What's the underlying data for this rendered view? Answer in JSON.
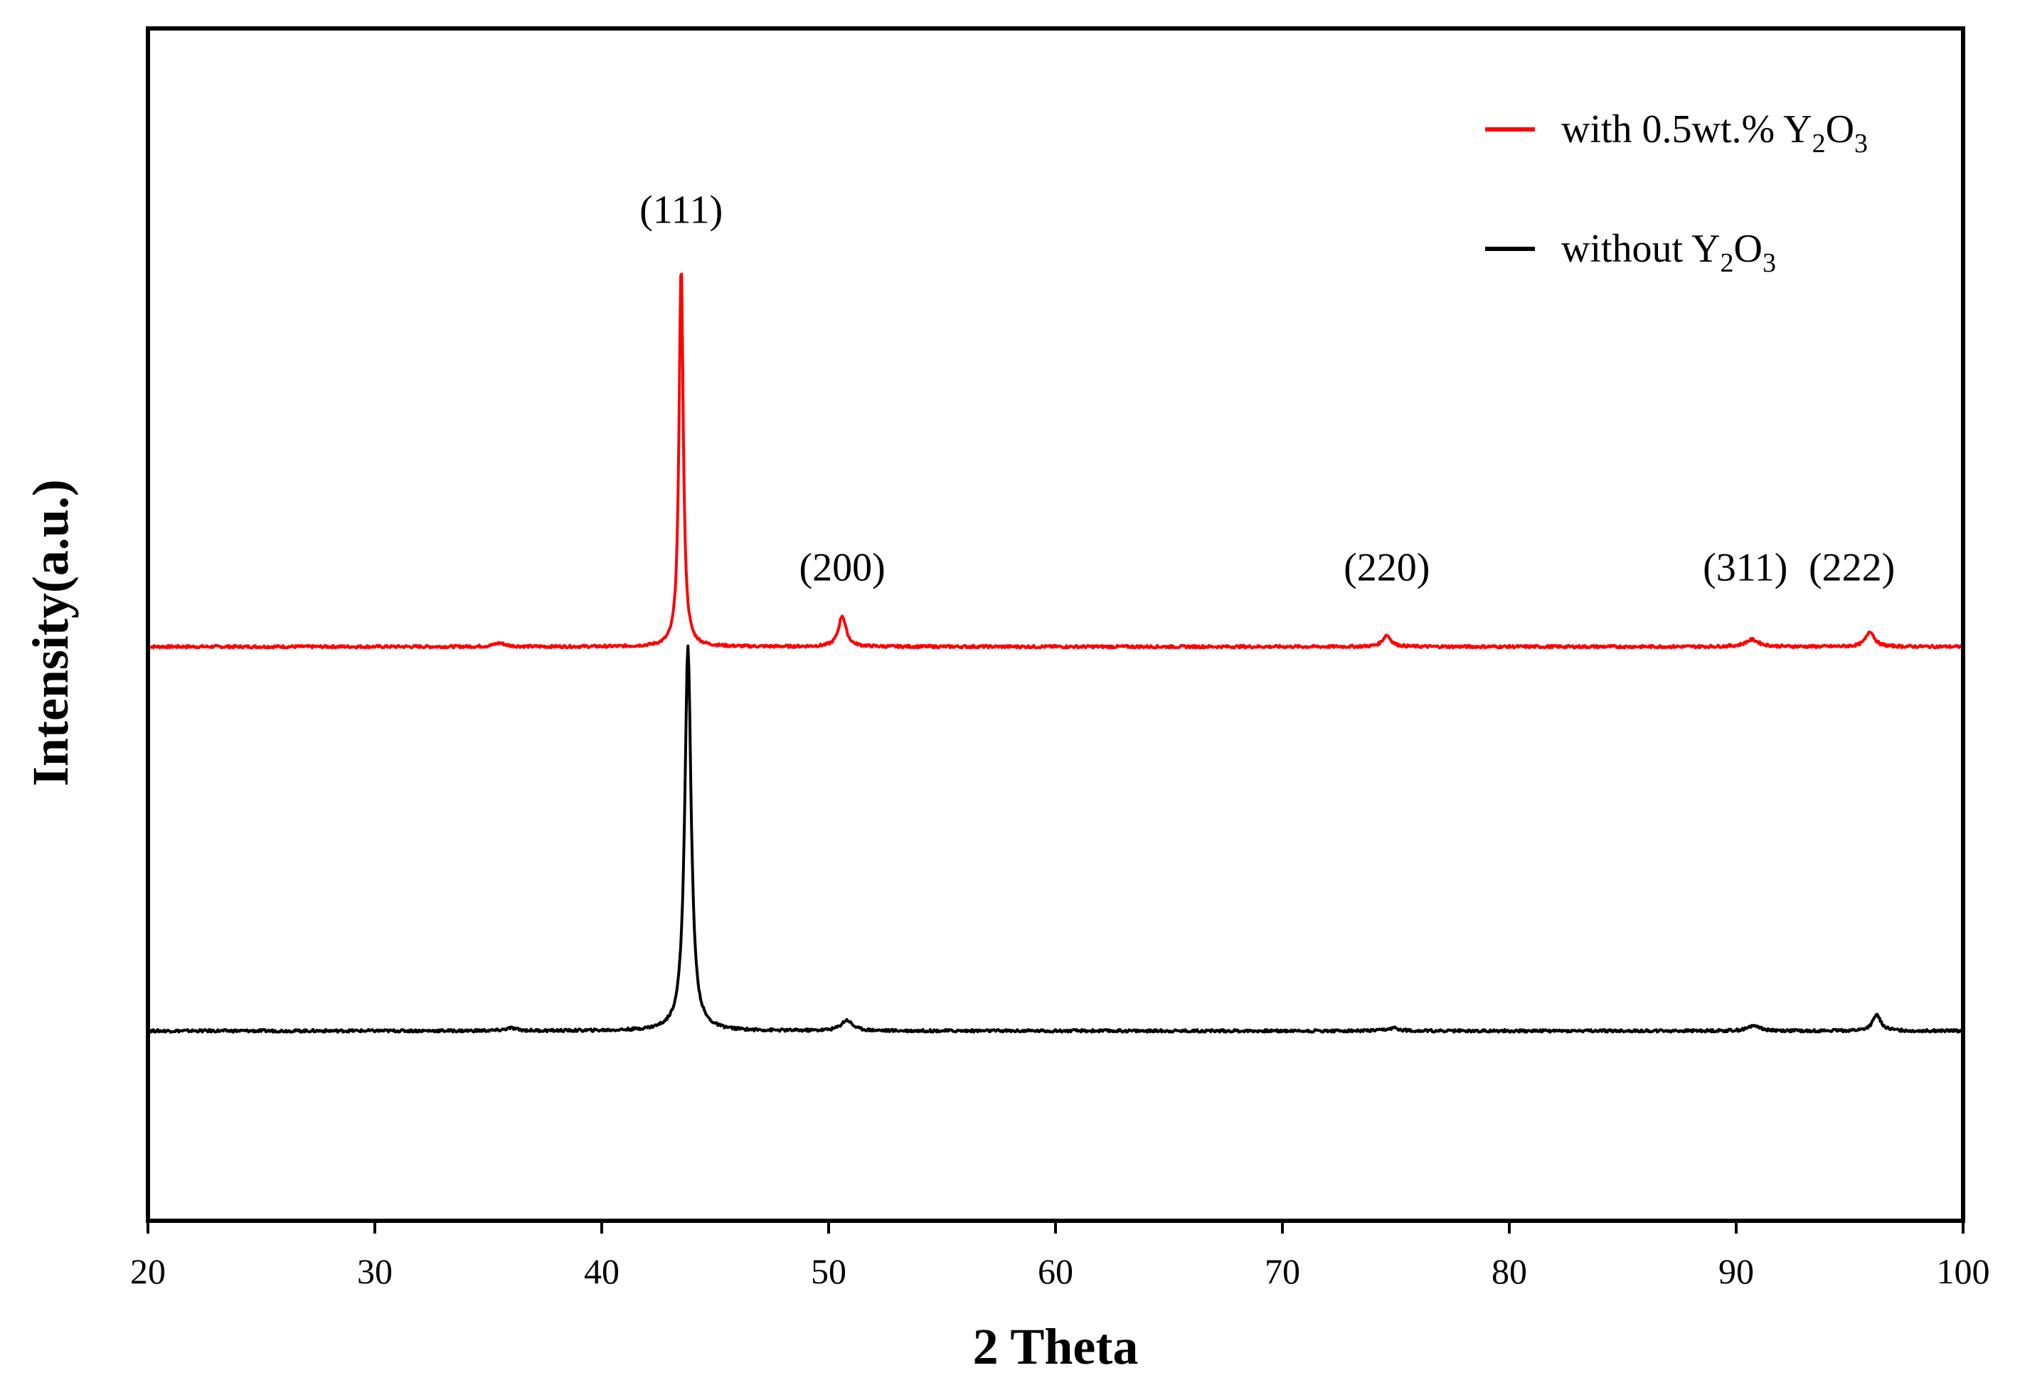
{
  "chart_data": {
    "type": "line",
    "title": "",
    "xlabel": "2 Theta",
    "ylabel": "Intensity(a.u.)",
    "xlim": [
      20,
      100
    ],
    "ylim": [
      0,
      2.7
    ],
    "x_ticks": [
      20,
      30,
      40,
      50,
      60,
      70,
      80,
      90,
      100
    ],
    "y_ticks_shown": false,
    "grid": false,
    "legend_position": "top-right",
    "series": [
      {
        "key": "with_y2o3",
        "name": "with 0.5wt.% Y2O3",
        "legend_prefix": "with 0.5wt.% Y",
        "color": "#ff0000",
        "baseline": 1.3,
        "peaks": [
          {
            "x": 35.5,
            "h": 0.008,
            "w": 0.3
          },
          {
            "x": 43.5,
            "h": 0.87,
            "w": 0.11
          },
          {
            "x": 50.6,
            "h": 0.07,
            "w": 0.2
          },
          {
            "x": 74.6,
            "h": 0.026,
            "w": 0.22
          },
          {
            "x": 90.7,
            "h": 0.016,
            "w": 0.35
          },
          {
            "x": 95.9,
            "h": 0.035,
            "w": 0.22
          }
        ]
      },
      {
        "key": "without_y2o3",
        "name": "without Y2O3",
        "legend_prefix": "without Y",
        "color": "#000000",
        "baseline": 0.43,
        "peaks": [
          {
            "x": 36.0,
            "h": 0.006,
            "w": 0.3
          },
          {
            "x": 43.8,
            "h": 0.87,
            "w": 0.17
          },
          {
            "x": 50.8,
            "h": 0.024,
            "w": 0.3
          },
          {
            "x": 74.9,
            "h": 0.006,
            "w": 0.3
          },
          {
            "x": 90.8,
            "h": 0.013,
            "w": 0.3
          },
          {
            "x": 96.2,
            "h": 0.036,
            "w": 0.22
          }
        ]
      }
    ],
    "peak_annotations": [
      {
        "label": "(111)",
        "x": 43.5,
        "y": 2.26
      },
      {
        "label": "(200)",
        "x": 50.6,
        "y": 1.45
      },
      {
        "label": "(220)",
        "x": 74.6,
        "y": 1.45
      },
      {
        "label": "(311)",
        "x": 90.4,
        "y": 1.45
      },
      {
        "label": "(222)",
        "x": 95.1,
        "y": 1.45
      }
    ]
  }
}
